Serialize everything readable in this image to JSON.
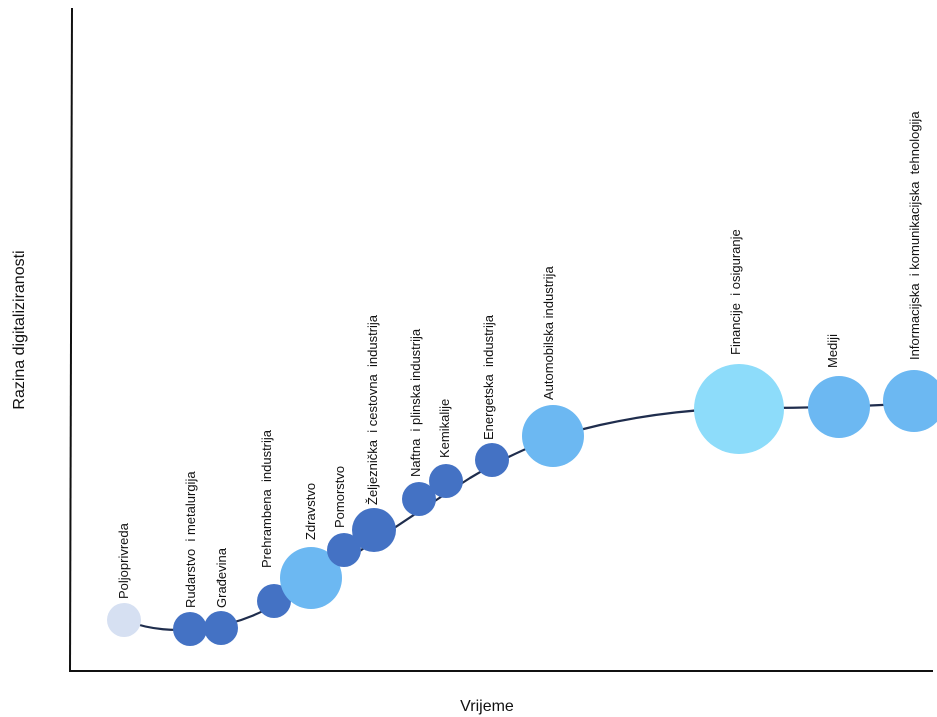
{
  "chart_data": {
    "type": "scatter",
    "title": "",
    "xlabel": "Vrijeme",
    "ylabel": "Razina digitaliziranosti",
    "curve_color": "#1f2d4d",
    "axis_color": "#111111",
    "points": [
      {
        "label": "Poljoprivreda",
        "color": "#d6e0f2"
      },
      {
        "label": "Rudarstvo  i metalurgija",
        "color": "#4472c4"
      },
      {
        "label": "Građevina",
        "color": "#4472c4"
      },
      {
        "label": "Prehrambena  industrija",
        "color": "#4472c4"
      },
      {
        "label": "Zdravstvo",
        "color": "#6cb8f2"
      },
      {
        "label": "Pomorstvo",
        "color": "#4472c4"
      },
      {
        "label": "Željeznička  i cestovna  industrija",
        "color": "#4472c4"
      },
      {
        "label": "Naftna  i plinska industrija",
        "color": "#4472c4"
      },
      {
        "label": "Kemikalije",
        "color": "#4472c4"
      },
      {
        "label": "Energetska  industrija",
        "color": "#4472c4"
      },
      {
        "label": "Automobilska industrija",
        "color": "#6cb8f2"
      },
      {
        "label": "Financije  i osiguranje",
        "color": "#8ddcfa"
      },
      {
        "label": "Mediji",
        "color": "#6cb8f2"
      },
      {
        "label": "Informacijska  i komunikacijska  tehnologija",
        "color": "#6cb8f2"
      }
    ]
  }
}
